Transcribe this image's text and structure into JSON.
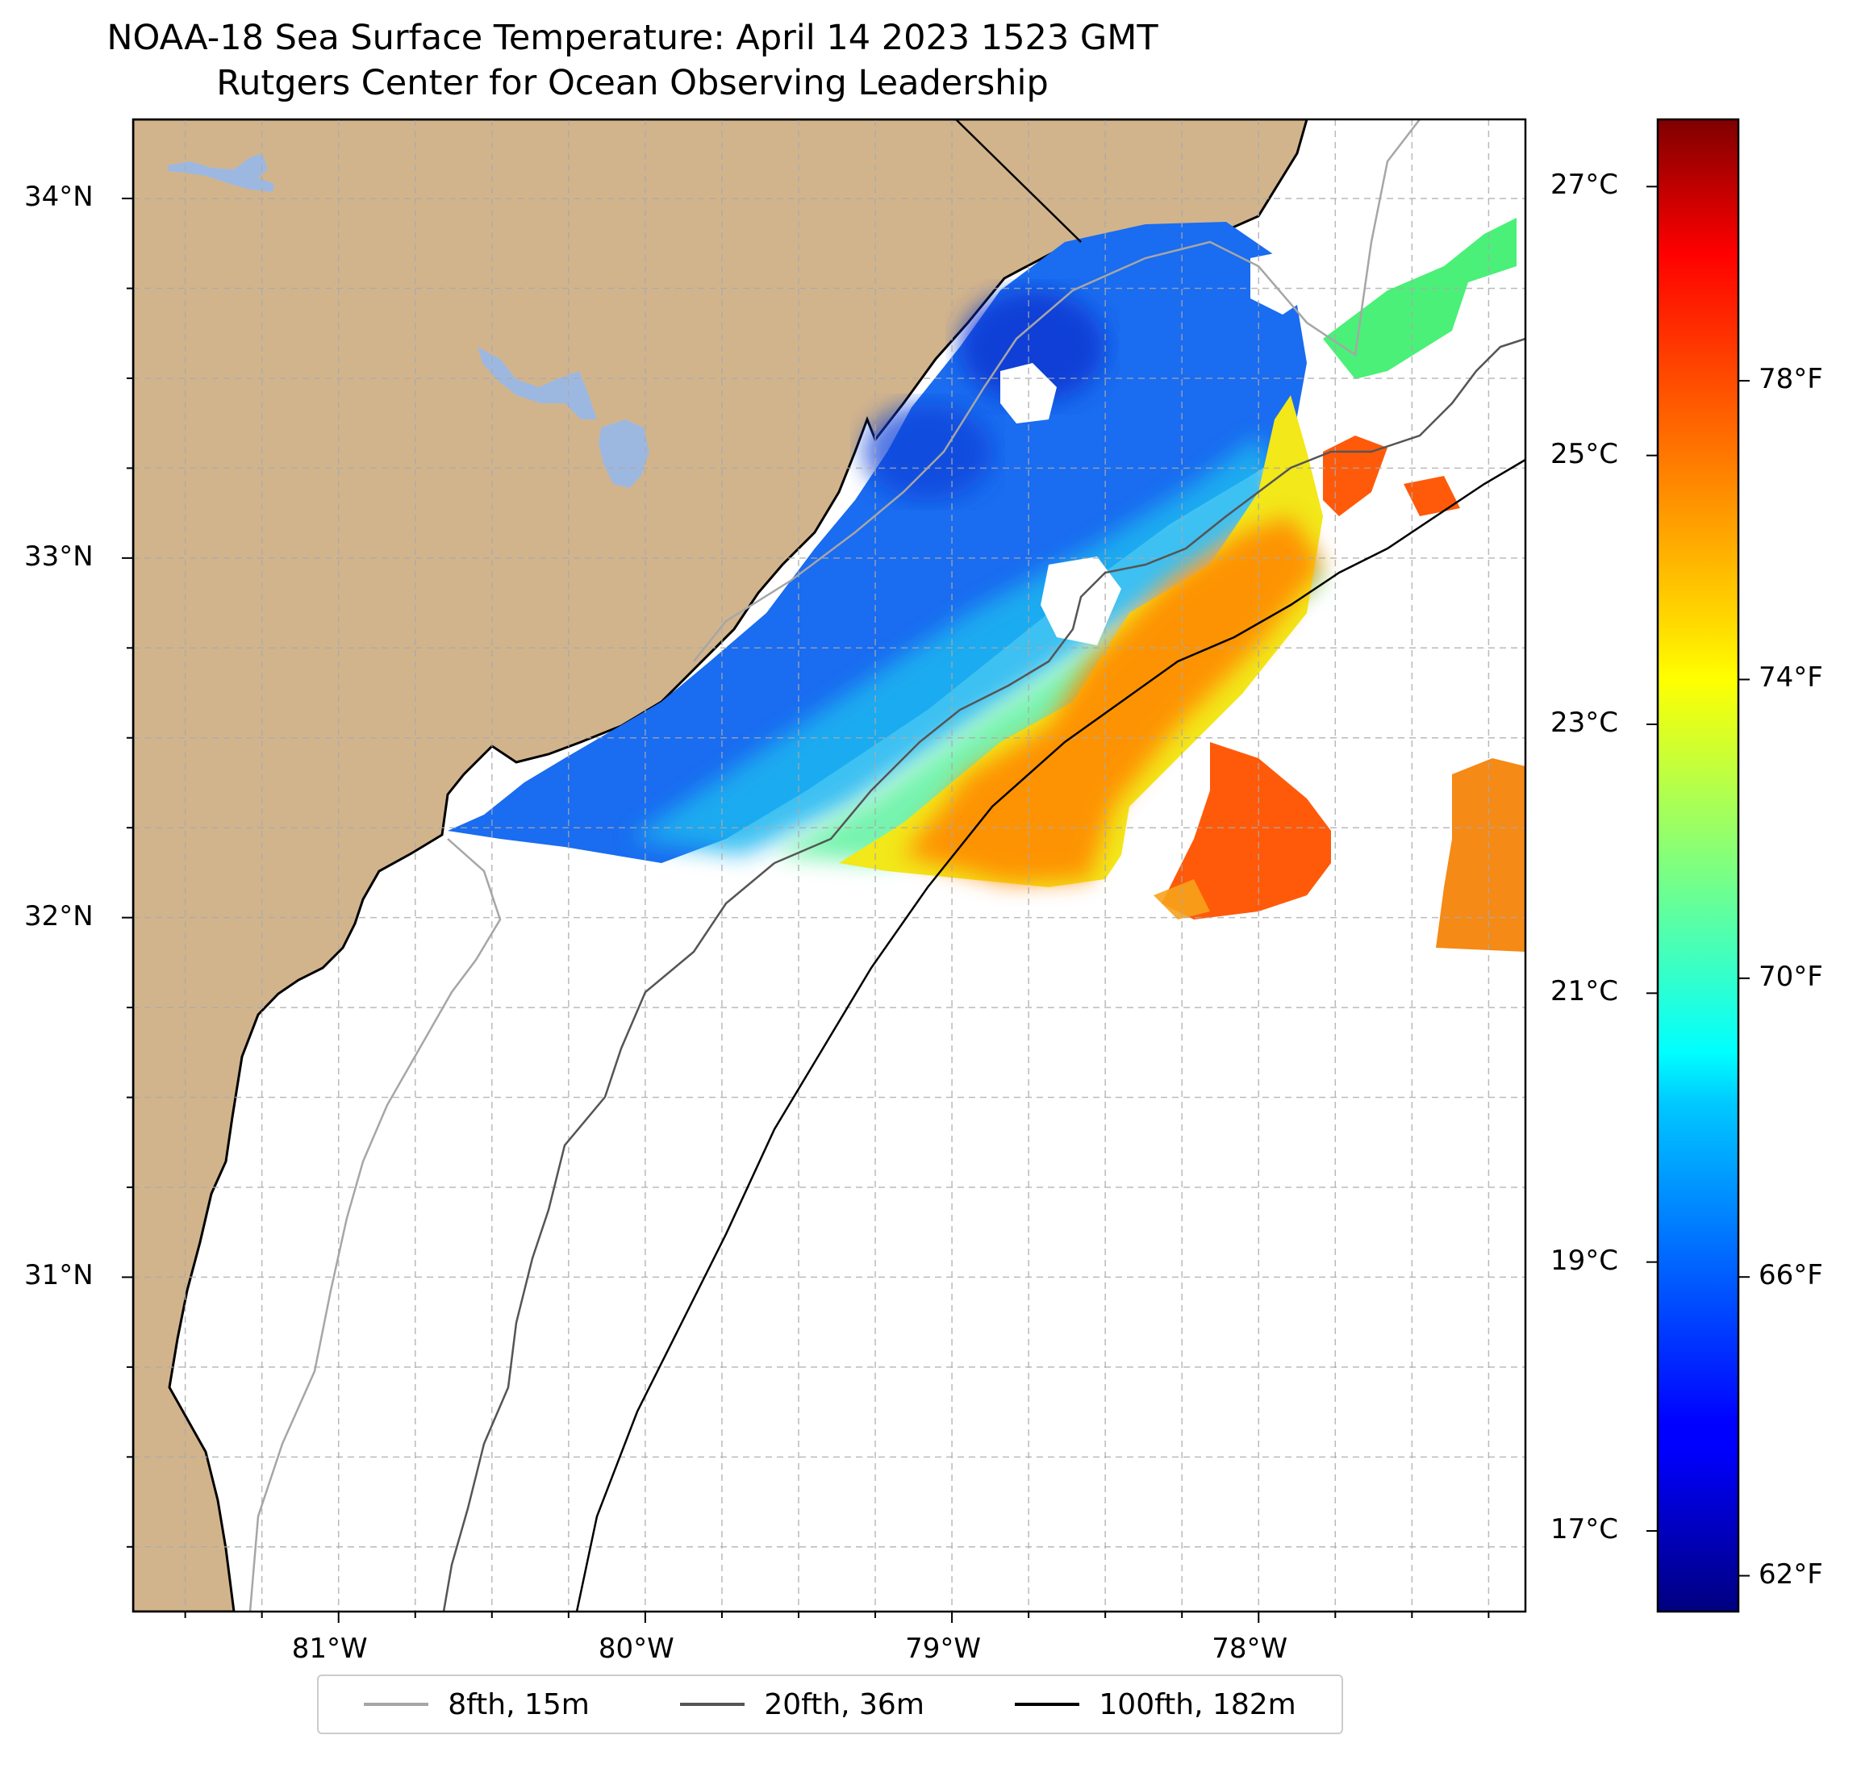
{
  "title": {
    "line1": "NOAA-18 Sea Surface Temperature: April 14 2023 1523 GMT",
    "line2": "Rutgers Center for Ocean Observing Leadership"
  },
  "map": {
    "lon_range": [
      -81.67,
      -77.13
    ],
    "lat_range": [
      30.07,
      34.22
    ],
    "land_color": "#d2b48c",
    "lake_color": "#9db8e0",
    "grid": "dashed"
  },
  "axes": {
    "lat_ticks": [
      {
        "value": 34,
        "label": "34°N"
      },
      {
        "value": 33,
        "label": "33°N"
      },
      {
        "value": 32,
        "label": "32°N"
      },
      {
        "value": 31,
        "label": "31°N"
      }
    ],
    "lon_ticks": [
      {
        "value": -81,
        "label": "81°W"
      },
      {
        "value": -80,
        "label": "80°W"
      },
      {
        "value": -79,
        "label": "79°W"
      },
      {
        "value": -78,
        "label": "78°W"
      }
    ]
  },
  "colorbar": {
    "colormap": "jet",
    "range_c": [
      16.4,
      27.5
    ],
    "celsius_ticks": [
      {
        "value": 27,
        "label": "27°C"
      },
      {
        "value": 25,
        "label": "25°C"
      },
      {
        "value": 23,
        "label": "23°C"
      },
      {
        "value": 21,
        "label": "21°C"
      },
      {
        "value": 19,
        "label": "19°C"
      },
      {
        "value": 17,
        "label": "17°C"
      }
    ],
    "fahrenheit_ticks": [
      {
        "value": 78,
        "label": "78°F"
      },
      {
        "value": 74,
        "label": "74°F"
      },
      {
        "value": 70,
        "label": "70°F"
      },
      {
        "value": 66,
        "label": "66°F"
      },
      {
        "value": 62,
        "label": "62°F"
      }
    ]
  },
  "legend": {
    "placement": "bottom-center",
    "items": [
      {
        "label": "8fth, 15m",
        "color": "#a6a6a6"
      },
      {
        "label": "20fth, 36m",
        "color": "#555555"
      },
      {
        "label": "100fth, 182m",
        "color": "#000000"
      }
    ]
  }
}
